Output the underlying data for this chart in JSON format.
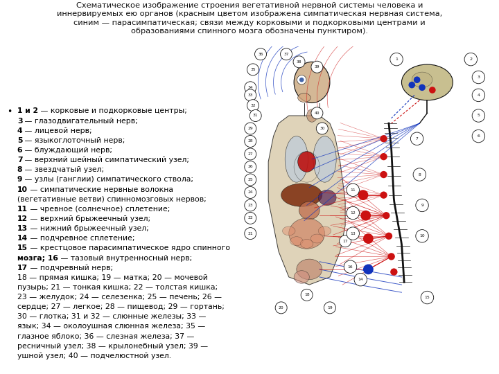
{
  "title_line1": "Схематическое изображение строения вегетативной нервной системы человека и",
  "title_line2": "иннервируемых ею органов (красным цветом изображена симпатическая нервная система,",
  "title_line3": "синим — парасимпатическая; связи между корковыми и подкорковыми центрами и",
  "title_line4": "образованиями спинного мозга обозначены пунктиром).",
  "title_fontsize": 8.2,
  "bg": "#ffffff",
  "text_fs": 7.8,
  "legend": [
    {
      "bold": "1 и 2",
      "rest": " — корковые и подкорковые центры;",
      "bullet": true
    },
    {
      "bold": "3",
      "rest": " — глазодвигательный нерв;",
      "bullet": false
    },
    {
      "bold": "4",
      "rest": " — лицевой нерв;",
      "bullet": false
    },
    {
      "bold": "5",
      "rest": " — языкоглоточный нерв;",
      "bullet": false
    },
    {
      "bold": "6",
      "rest": " — блуждающий нерв;",
      "bullet": false
    },
    {
      "bold": "7",
      "rest": " — верхний шейный симпатический узел;",
      "bullet": false
    },
    {
      "bold": "8",
      "rest": " — звездчатый узел;",
      "bullet": false
    },
    {
      "bold": "9",
      "rest": " — узлы (ганглии) симпатического ствола;",
      "bullet": false
    },
    {
      "bold": "10",
      "rest": " — симпатические нервные волокна",
      "bullet": false
    },
    {
      "bold": "",
      "rest": "(вегетативные ветви) спинномозговых нервов;",
      "bullet": false
    },
    {
      "bold": "11",
      "rest": " — чревное (солнечное) сплетение;",
      "bullet": false
    },
    {
      "bold": "12",
      "rest": " — верхний брыжеечный узел;",
      "bullet": false
    },
    {
      "bold": "13",
      "rest": " — нижний брыжеечный узел;",
      "bullet": false
    },
    {
      "bold": "14",
      "rest": " — подчревное сплетение;",
      "bullet": false
    },
    {
      "bold": "15",
      "rest": " — крестцовое парасимпатическое ядро спинного",
      "bullet": false
    },
    {
      "bold": "мозга; 16",
      "rest": " — тазовый внутренносный нерв;",
      "bullet": false
    },
    {
      "bold": "17",
      "rest": " — подчревный нерв;",
      "bullet": false
    },
    {
      "bold": "",
      "rest": "18 — прямая кишка; 19 — матка; 20 — мочевой",
      "bullet": false
    },
    {
      "bold": "",
      "rest": "пузырь; 21 — тонкая кишка; 22 — толстая кишка;",
      "bullet": false
    },
    {
      "bold": "",
      "rest": "23 — желудок; 24 — селезенка; 25 — печень; 26 —",
      "bullet": false
    },
    {
      "bold": "",
      "rest": "сердце; 27 — легкое; 28 — пищевод; 29 — гортань;",
      "bullet": false
    },
    {
      "bold": "",
      "rest": "30 — глотка; 31 и 32 — слюнные железы; 33 —",
      "bullet": false
    },
    {
      "bold": "",
      "rest": "язык; 34 — околоушная слюнная железа; 35 —",
      "bullet": false
    },
    {
      "bold": "",
      "rest": "глазное яблоко; 36 — слезная железа; 37 —",
      "bullet": false
    },
    {
      "bold": "",
      "rest": "ресничный узел; 38 — крылонебный узел; 39 —",
      "bullet": false
    },
    {
      "bold": "",
      "rest": "ушной узел; 40 — подчелюстной узел.",
      "bullet": false
    }
  ],
  "red": "#CC1111",
  "blue": "#1133BB",
  "dark": "#111111",
  "skin": "#D4B896",
  "brain_color": "#C8BF90",
  "body_color": "#D8C8A8",
  "organ_dark": "#8B2000",
  "organ_mid": "#B04020",
  "organ_light": "#D08060",
  "img_bg": "#EDE8DC"
}
